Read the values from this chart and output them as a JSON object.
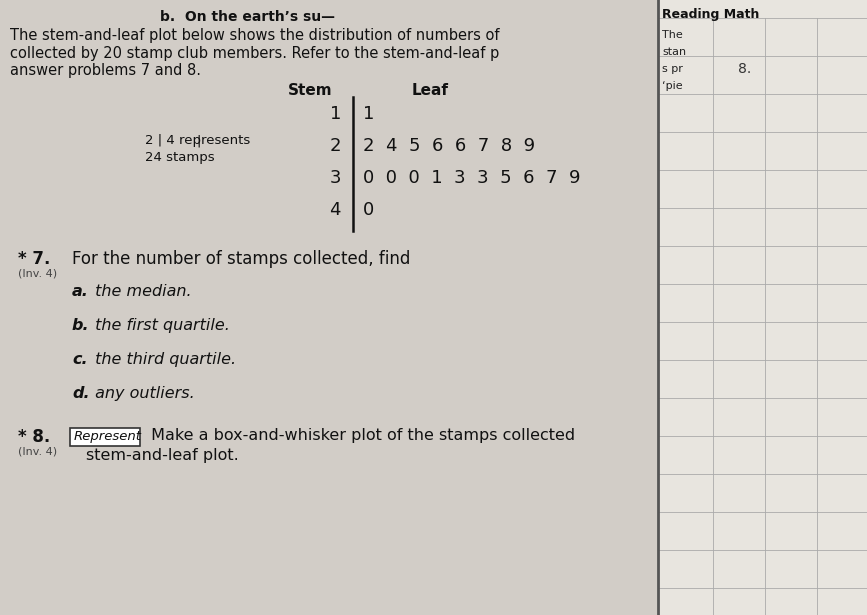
{
  "page_bg": "#cdc9c3",
  "content_bg": "#d8d3cc",
  "right_panel_bg": "#e8e5df",
  "separator_color": "#888888",
  "title_b": "b.  On the earth’s su—",
  "intro_line1": "The stem-and-leaf plot below shows the distribution of numbers of",
  "intro_line2": "collected by 20 stamp club members. Refer to the stem-and-leaf p",
  "intro_line3": "answer problems 7 and 8.",
  "stem_header": "Stem",
  "leaf_header": "Leaf",
  "stem_leaf_data": [
    {
      "stem": "1",
      "leaf": "1"
    },
    {
      "stem": "2",
      "leaf": "2  4  5  6  6  7  8  9"
    },
    {
      "stem": "3",
      "leaf": "0  0  0  1  3  3  5  6  7  9"
    },
    {
      "stem": "4",
      "leaf": "0"
    }
  ],
  "key_line1": "2 | 4 represents",
  "key_line2": "24 stamps",
  "reading_math": "Reading Math",
  "rm_line1": "The",
  "rm_line2": "stan",
  "rm_line3": "s pr",
  "rm_line4": "‘pie",
  "rm_number": "8.",
  "q7_star": "* 7.",
  "q7_inv": "(Inv. 4)",
  "q7_text": "For the number of stamps collected, find",
  "q7a": "a.",
  "q7a_text": " the median.",
  "q7b": "b.",
  "q7b_text": " the first quartile.",
  "q7c": "c.",
  "q7c_text": " the third quartile.",
  "q7d": "d.",
  "q7d_text": " any outliers.",
  "q8_star": "* 8.",
  "q8_inv": "(Inv. 4)",
  "q8_label": "Represent",
  "q8_rest": " Make a box-and-whisker plot of the stamps collected",
  "q8_line2": "stem-and-leaf plot."
}
